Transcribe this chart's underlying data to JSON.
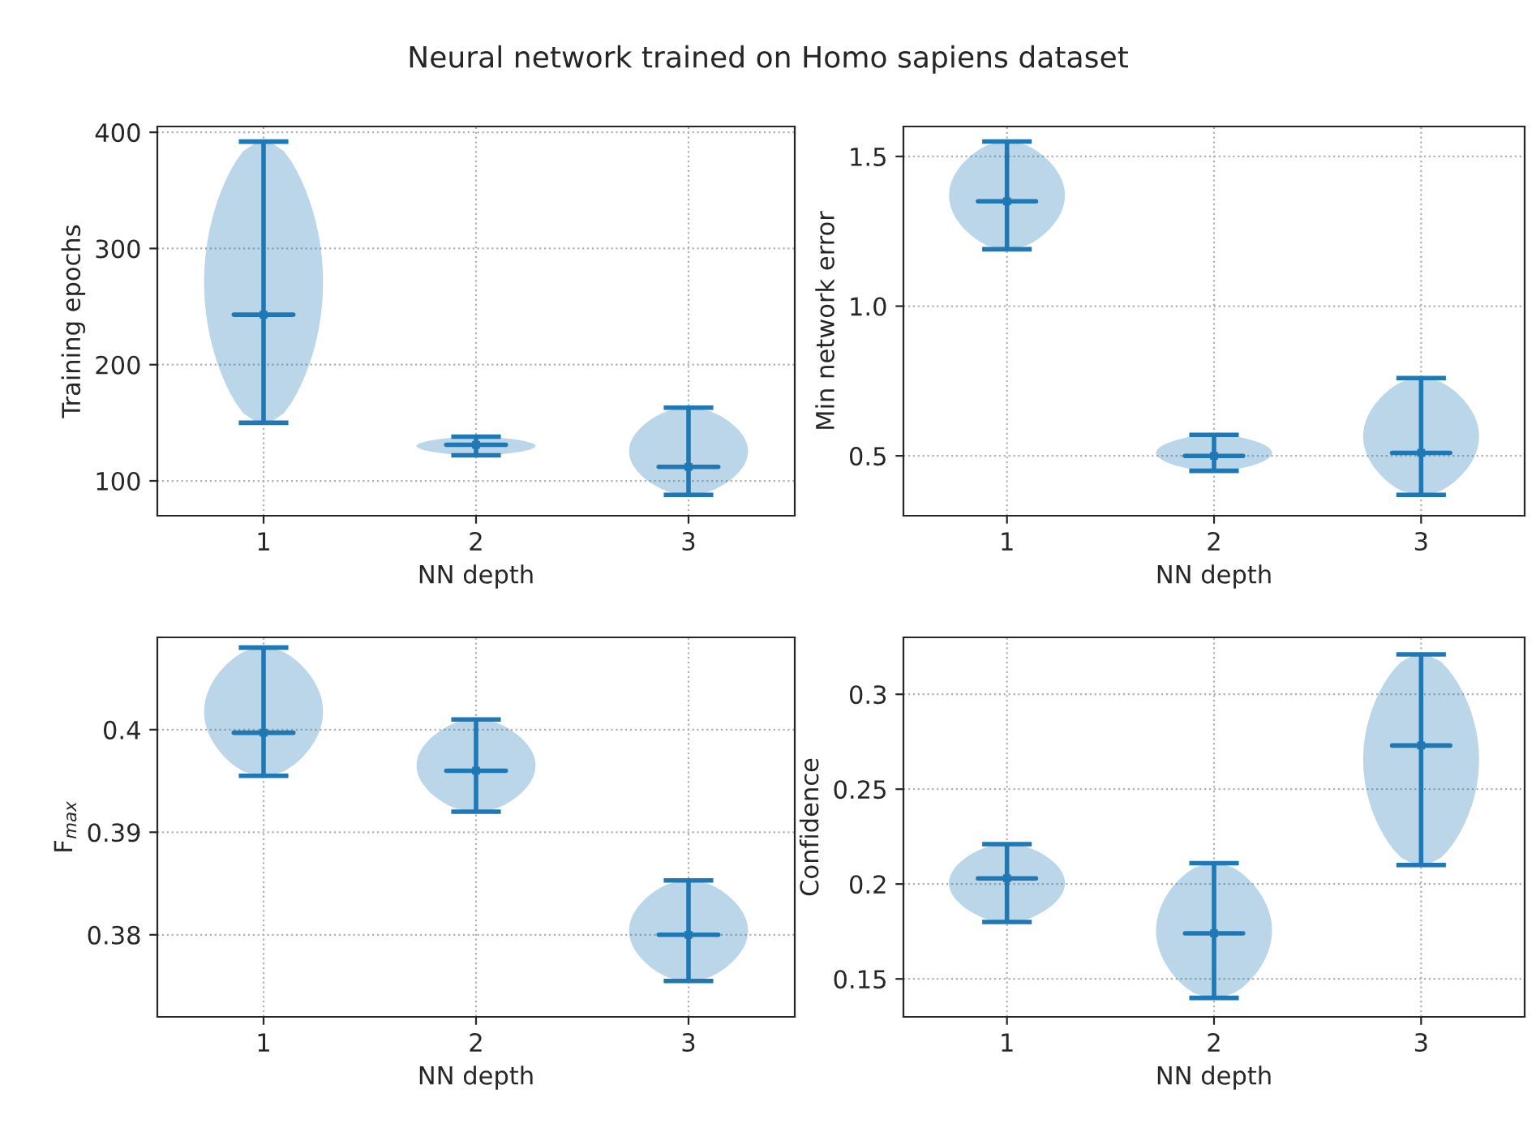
{
  "chart_data": [
    {
      "type": "scatter",
      "title": "Neural network trained on Homo sapiens dataset",
      "xlabel": "NN depth",
      "ylabel": "Training epochs",
      "categories": [
        "1",
        "2",
        "3"
      ],
      "values": [
        243,
        131,
        112
      ],
      "errors": [
        [
          150,
          392
        ],
        [
          122,
          138
        ],
        [
          88,
          163
        ]
      ],
      "color": "#1f77b4",
      "marker": "square",
      "ylim": [
        70,
        405
      ],
      "yticks": [
        100,
        200,
        300,
        400
      ],
      "grid": true
    },
    {
      "type": "scatter",
      "xlabel": "NN depth",
      "ylabel": "Min network error",
      "categories": [
        "1",
        "2",
        "3"
      ],
      "values": [
        1.35,
        0.5,
        0.51
      ],
      "errors": [
        [
          1.19,
          1.55
        ],
        [
          0.45,
          0.57
        ],
        [
          0.37,
          0.76
        ]
      ],
      "color": "#1f77b4",
      "marker": "square",
      "ylim": [
        0.3,
        1.6
      ],
      "yticks": [
        0.5,
        {
          "value": 1.0,
          "label": "1.0"
        },
        1.5
      ],
      "grid": true
    },
    {
      "type": "scatter",
      "xlabel": "NN depth",
      "ylabel": "F$_{max}$",
      "categories": [
        "1",
        "2",
        "3"
      ],
      "values": [
        0.3997,
        0.396,
        0.38
      ],
      "errors": [
        [
          0.3955,
          0.408
        ],
        [
          0.392,
          0.401
        ],
        [
          0.3755,
          0.3853
        ]
      ],
      "color": "#1f77b4",
      "marker": "square",
      "ylim": [
        0.372,
        0.409
      ],
      "yticks": [
        0.38,
        0.39,
        0.4
      ],
      "grid": true
    },
    {
      "type": "scatter",
      "xlabel": "NN depth",
      "ylabel": "Confidence",
      "categories": [
        "1",
        "2",
        "3"
      ],
      "values": [
        0.203,
        0.174,
        0.273
      ],
      "errors": [
        [
          0.18,
          0.221
        ],
        [
          0.14,
          0.211
        ],
        [
          0.21,
          0.321
        ]
      ],
      "color": "#1f77b4",
      "marker": "square",
      "ylim": [
        0.13,
        0.33
      ],
      "yticks": [
        0.15,
        0.2,
        0.25,
        0.3
      ],
      "grid": true
    }
  ]
}
